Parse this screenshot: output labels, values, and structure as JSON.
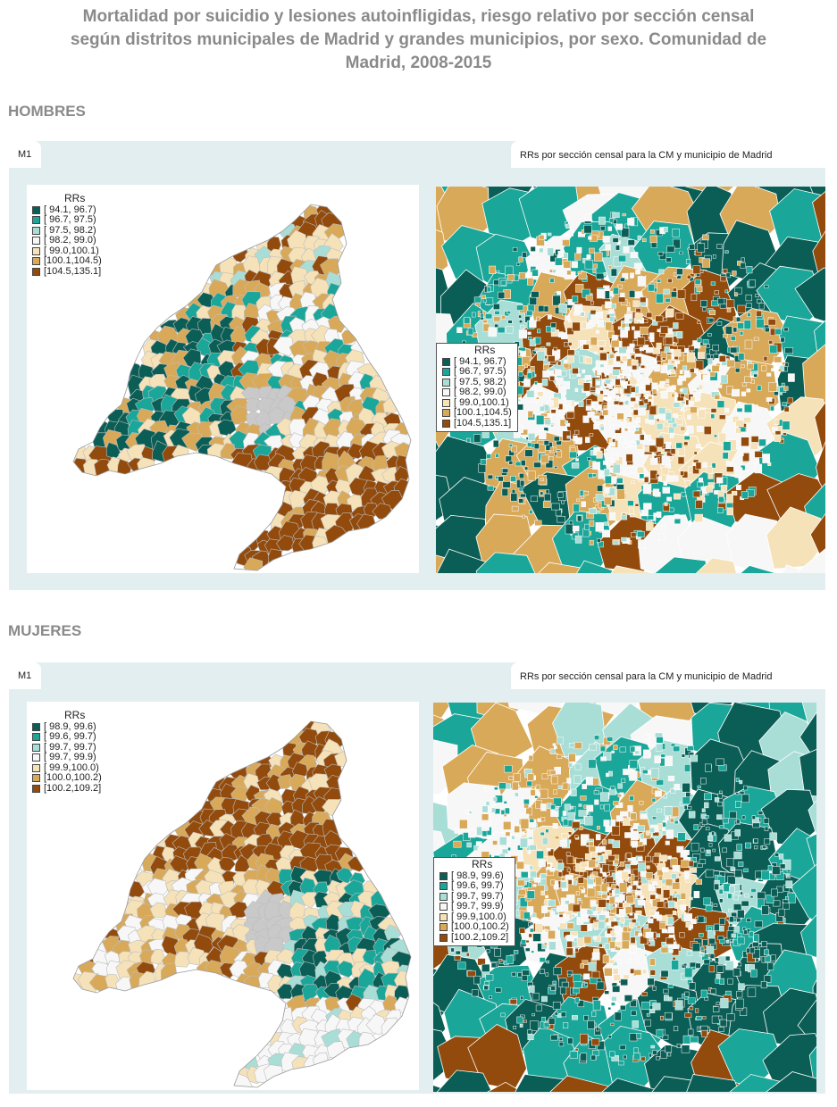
{
  "title": "Mortalidad por suicidio y lesiones autoinfligidas, riesgo relativo por sección censal\nsegún distritos municipales de Madrid y grandes municipios, por sexo. Comunidad de\nMadrid, 2008-2015",
  "sections": [
    {
      "label": "HOMBRES",
      "tab": "M1",
      "subtitle": "RRs por sección censal para la CM y municipio de Madrid",
      "legend_title": "RRs",
      "legend_items": [
        {
          "label": "[ 94.1, 96.7)",
          "color": "#0b5e55"
        },
        {
          "label": "[ 96.7, 97.5)",
          "color": "#1aa698"
        },
        {
          "label": "[ 97.5, 98.2)",
          "color": "#a9ded7"
        },
        {
          "label": "[ 98.2, 99.0)",
          "color": "#f7f7f7"
        },
        {
          "label": "[ 99.0,100.1)",
          "color": "#f6e2b9"
        },
        {
          "label": "[100.1,104.5)",
          "color": "#d9a95a"
        },
        {
          "label": "[104.5,135.1]",
          "color": "#924b0c"
        }
      ]
    },
    {
      "label": "MUJERES",
      "tab": "M1",
      "subtitle": "RRs por sección censal para la CM y municipio de Madrid",
      "legend_title": "RRs",
      "legend_items": [
        {
          "label": "[ 98.9, 99.6)",
          "color": "#0b5e55"
        },
        {
          "label": "[ 99.6, 99.7)",
          "color": "#1aa698"
        },
        {
          "label": "[ 99.7, 99.7)",
          "color": "#a9ded7"
        },
        {
          "label": "[ 99.7, 99.9)",
          "color": "#f7f7f7"
        },
        {
          "label": "[ 99.9,100.0)",
          "color": "#f6e2b9"
        },
        {
          "label": "[100.0,100.2)",
          "color": "#d9a95a"
        },
        {
          "label": "[100.2,109.2]",
          "color": "#924b0c"
        }
      ]
    }
  ]
}
